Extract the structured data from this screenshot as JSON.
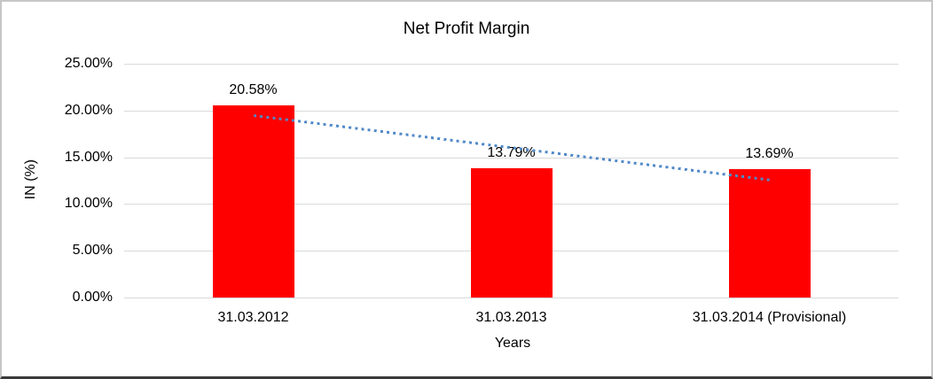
{
  "chart": {
    "bar_color": "#ff0000",
    "trendline_color": "#5089c8",
    "gridline_color": "#d9d9d9",
    "text_color": "#000000",
    "background_color": "#ffffff"
  },
  "chart_data": {
    "type": "bar",
    "title": "Net Profit Margin",
    "xlabel": "Years",
    "ylabel": "IN (%)",
    "categories": [
      "31.03.2012",
      "31.03.2013",
      "31.03.2014 (Provisional)"
    ],
    "values": [
      20.58,
      13.79,
      13.69
    ],
    "data_labels": [
      "20.58%",
      "13.79%",
      "13.69%"
    ],
    "y_ticks": [
      "0.00%",
      "5.00%",
      "10.00%",
      "15.00%",
      "20.00%",
      "25.00%"
    ],
    "ylim": [
      0,
      25
    ],
    "grid": true,
    "legend": false,
    "trendline": {
      "type": "linear",
      "style": "dotted",
      "start": 19.47,
      "end": 12.58
    }
  }
}
